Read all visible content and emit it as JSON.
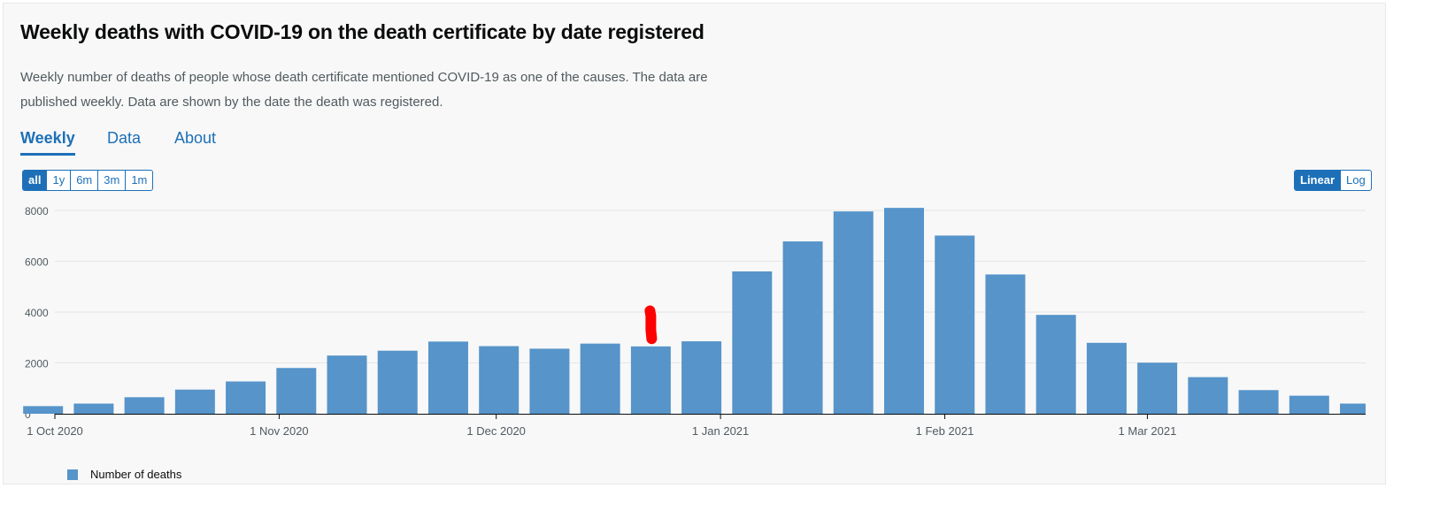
{
  "title": "Weekly deaths with COVID-19 on the death certificate by date registered",
  "description": "Weekly number of deaths of people whose death certificate mentioned COVID-19 as one of the causes. The data are published weekly. Data are shown by the date the death was registered.",
  "tabs": [
    {
      "label": "Weekly",
      "active": true
    },
    {
      "label": "Data",
      "active": false
    },
    {
      "label": "About",
      "active": false
    }
  ],
  "range_buttons": [
    {
      "label": "all",
      "active": true
    },
    {
      "label": "1y",
      "active": false
    },
    {
      "label": "6m",
      "active": false
    },
    {
      "label": "3m",
      "active": false
    },
    {
      "label": "1m",
      "active": false
    }
  ],
  "scale_buttons": [
    {
      "label": "Linear",
      "active": true
    },
    {
      "label": "Log",
      "active": false
    }
  ],
  "colors": {
    "bar": "#5694ca",
    "accent": "#1d70b8",
    "annotation": "#ff0000"
  },
  "chart_data": {
    "type": "bar",
    "x_axis": "date",
    "x": [
      "2020-10-02",
      "2020-10-09",
      "2020-10-16",
      "2020-10-23",
      "2020-10-30",
      "2020-11-06",
      "2020-11-13",
      "2020-11-20",
      "2020-11-27",
      "2020-12-04",
      "2020-12-11",
      "2020-12-18",
      "2020-12-25",
      "2021-01-01",
      "2021-01-08",
      "2021-01-15",
      "2021-01-22",
      "2021-01-29",
      "2021-02-05",
      "2021-02-12",
      "2021-02-19",
      "2021-02-26",
      "2021-03-05",
      "2021-03-12",
      "2021-03-19",
      "2021-03-26",
      "2021-04-02"
    ],
    "values": [
      300,
      400,
      650,
      950,
      1270,
      1800,
      2290,
      2480,
      2840,
      2660,
      2560,
      2760,
      2650,
      2850,
      5600,
      6780,
      7960,
      8100,
      7010,
      5480,
      3890,
      2790,
      2010,
      1440,
      930,
      710,
      400
    ],
    "x_ticks": [
      "1 Oct 2020",
      "1 Nov 2020",
      "1 Dec 2020",
      "1 Jan 2021",
      "1 Feb 2021",
      "1 Mar 2021"
    ],
    "y_ticks": [
      "0",
      "2000",
      "4000",
      "6000",
      "8000"
    ],
    "ylim": [
      0,
      8000
    ],
    "grid": true,
    "legend": [
      {
        "name": "Number of deaths"
      }
    ],
    "legend_position": "bottom-left",
    "annotation": "red hand-drawn vertical mark above the 25 Dec 2020 bar"
  }
}
